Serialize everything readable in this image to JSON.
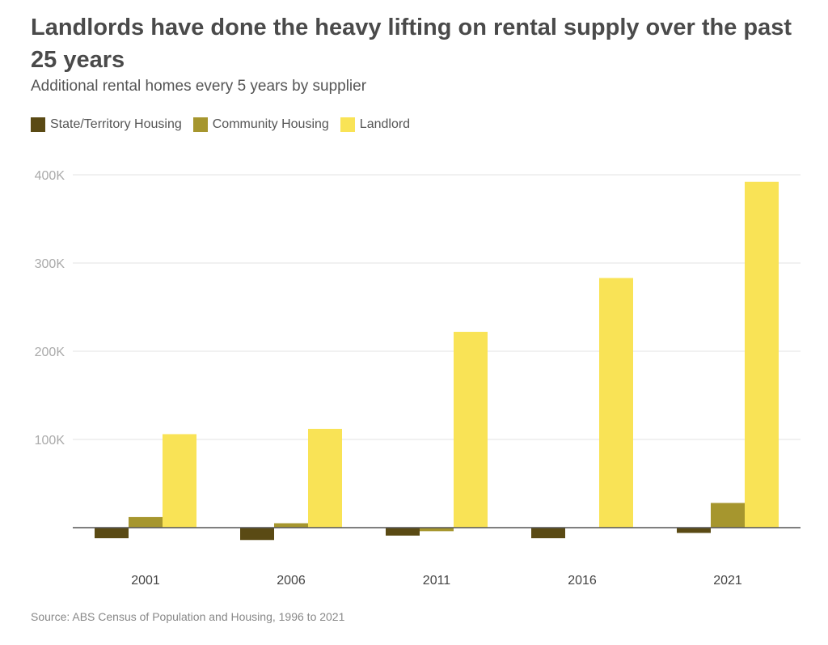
{
  "title": "Landlords have done the heavy lifting on rental supply over the past 25 years",
  "subtitle": "Additional rental homes every 5 years by supplier",
  "source": "Source: ABS Census of Population and Housing, 1996 to 2021",
  "legend": [
    {
      "label": "State/Territory Housing",
      "color": "#5a4a14"
    },
    {
      "label": "Community Housing",
      "color": "#a6962e"
    },
    {
      "label": "Landlord",
      "color": "#f9e356"
    }
  ],
  "chart_data": {
    "type": "bar",
    "title": "Landlords have done the heavy lifting on rental supply over the past 25 years",
    "subtitle": "Additional rental homes every 5 years by supplier",
    "categories": [
      "2001",
      "2006",
      "2011",
      "2016",
      "2021"
    ],
    "series": [
      {
        "name": "State/Territory Housing",
        "color": "#5a4a14",
        "values": [
          -12000,
          -14000,
          -9000,
          -12000,
          -6000
        ]
      },
      {
        "name": "Community Housing",
        "color": "#a6962e",
        "values": [
          12000,
          5000,
          -4000,
          0,
          28000
        ]
      },
      {
        "name": "Landlord",
        "color": "#f9e356",
        "values": [
          106000,
          112000,
          222000,
          283000,
          392000
        ]
      }
    ],
    "yticks": [
      100000,
      200000,
      300000,
      400000
    ],
    "ytick_labels": [
      "100K",
      "200K",
      "300K",
      "400K"
    ],
    "ylim": [
      -20000,
      400000
    ],
    "xlabel": "",
    "ylabel": "",
    "grid": true,
    "legend_position": "top-left"
  }
}
